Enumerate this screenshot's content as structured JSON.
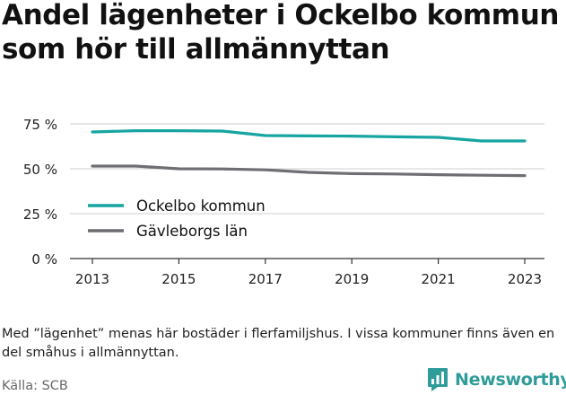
{
  "title": "Andel lägenheter i Ockelbo kommun som hör till allmännyttan",
  "note": "Med ”lägenhet” menas här bostäder i flerfamiljshus. I vissa kommuner finns även en del småhus i allmännyttan.",
  "source": "Källa: SCB",
  "brand": {
    "name": "Newsworthy",
    "icon": "bar-chart-speech-bubble-icon"
  },
  "colors": {
    "ockelbo": "#16a5a0",
    "gavleborg": "#6f6e73",
    "grid": "#cfcfcf",
    "axis": "#333333",
    "brand": "#2f9c9a"
  },
  "chart_data": {
    "type": "line",
    "x": [
      2013,
      2014,
      2015,
      2016,
      2017,
      2018,
      2019,
      2020,
      2021,
      2022,
      2023
    ],
    "series": [
      {
        "name": "Ockelbo kommun",
        "color": "#16a5a0",
        "values": [
          70.5,
          71.2,
          71.2,
          71.0,
          68.5,
          68.3,
          68.2,
          67.8,
          67.5,
          65.5,
          65.5
        ]
      },
      {
        "name": "Gävleborgs län",
        "color": "#6f6e73",
        "values": [
          51.5,
          51.5,
          50.0,
          49.9,
          49.4,
          48.0,
          47.3,
          47.1,
          46.7,
          46.4,
          46.2
        ]
      }
    ],
    "y_ticks": [
      0,
      25,
      50,
      75
    ],
    "y_tick_labels": [
      "0 %",
      "25 %",
      "50 %",
      "75 %"
    ],
    "x_ticks": [
      2013,
      2015,
      2017,
      2019,
      2021,
      2023
    ],
    "x_tick_labels": [
      "2013",
      "2015",
      "2017",
      "2019",
      "2021",
      "2023"
    ],
    "ylim": [
      0,
      75
    ],
    "xlim": [
      2013,
      2023
    ],
    "grid": "horizontal",
    "legend_position": "lower-left",
    "xlabel": "",
    "ylabel": ""
  }
}
